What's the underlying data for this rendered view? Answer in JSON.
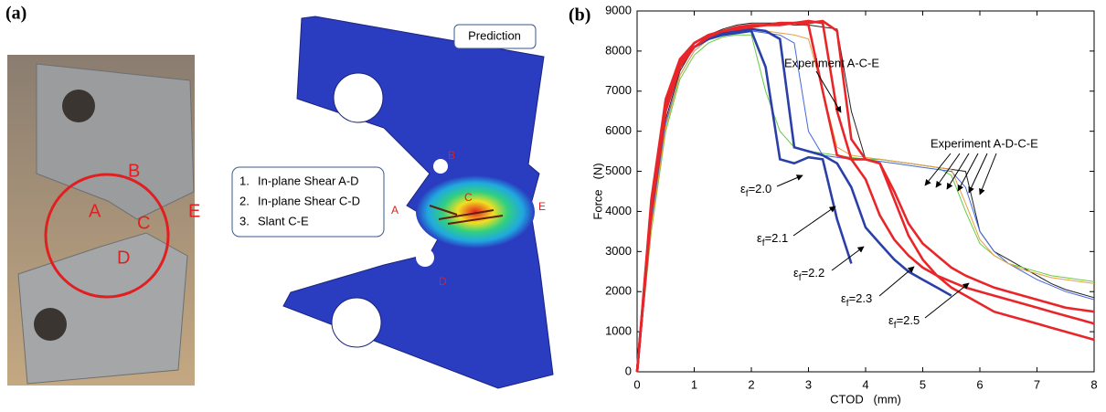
{
  "panel_a": {
    "label": "(a)",
    "photo_labels": [
      "A",
      "B",
      "C",
      "D",
      "E"
    ],
    "prediction_title": "Prediction",
    "modes": [
      {
        "num": "1.",
        "text": "In-plane Shear A-D"
      },
      {
        "num": "2.",
        "text": "In-plane Shear C-D"
      },
      {
        "num": "3.",
        "text": "Slant C-E"
      }
    ],
    "model_labels": [
      "A",
      "B",
      "C",
      "D",
      "E"
    ]
  },
  "panel_b": {
    "label": "(b)"
  },
  "chart_data": {
    "type": "line",
    "x_label": "CTOD   (mm)",
    "y_label": "Force   (N)",
    "x": [
      0,
      0.25,
      0.5,
      0.75,
      1,
      1.25,
      1.5,
      1.75,
      2,
      2.25,
      2.5,
      2.75,
      3,
      3.25,
      3.5,
      3.75,
      4,
      4.25,
      4.5,
      4.75,
      5,
      5.25,
      5.5,
      5.75,
      6,
      6.25,
      6.5,
      6.75,
      7,
      7.25,
      7.5,
      7.75,
      8
    ],
    "xlim": [
      0,
      8
    ],
    "xticks": [
      0,
      1,
      2,
      3,
      4,
      5,
      6,
      7,
      8
    ],
    "ylim": [
      0,
      9000
    ],
    "yticks": [
      0,
      1000,
      2000,
      3000,
      4000,
      5000,
      6000,
      7000,
      8000,
      9000
    ],
    "grid": false,
    "annotations": [
      "Experiment A-D-C-E"
    ],
    "series": [
      {
        "name": "Experiment A-C-E",
        "color": "#222222",
        "values": [
          0,
          3800,
          6300,
          7500,
          8100,
          8400,
          8550,
          8650,
          8700,
          8700,
          8700,
          8650,
          8650,
          8600,
          8550,
          6500,
          5300,
          5300,
          5250,
          5200,
          5150,
          5100,
          5050,
          5000,
          3500,
          3000,
          2800,
          2600,
          2400,
          2200,
          2050,
          1950,
          1850
        ]
      },
      {
        "color": "#66cc44",
        "values": [
          0,
          3500,
          6000,
          7300,
          7900,
          8200,
          8350,
          8400,
          8400,
          7000,
          6000,
          5600,
          5500,
          5450,
          5400,
          5350,
          5300,
          5300,
          5250,
          5200,
          5150,
          5100,
          4900,
          4000,
          3200,
          2900,
          2700,
          2600,
          2500,
          2400,
          2350,
          2300,
          2250
        ]
      },
      {
        "color": "#4466dd",
        "values": [
          0,
          3700,
          6200,
          7400,
          8000,
          8300,
          8450,
          8500,
          8500,
          8450,
          8400,
          8200,
          6000,
          5400,
          5350,
          5300,
          5300,
          5250,
          5200,
          5150,
          5100,
          5050,
          5000,
          4600,
          3500,
          3000,
          2700,
          2500,
          2300,
          2150,
          2000,
          1900,
          1800
        ]
      },
      {
        "color": "#e8a040",
        "values": [
          0,
          3600,
          6100,
          7400,
          8000,
          8300,
          8450,
          8550,
          8550,
          8500,
          8450,
          8400,
          8300,
          7000,
          5600,
          5400,
          5350,
          5300,
          5250,
          5200,
          5150,
          5100,
          5050,
          4200,
          3300,
          2900,
          2700,
          2550,
          2450,
          2350,
          2300,
          2250,
          2200
        ]
      },
      {
        "name": "εf=2.0",
        "color": "#2a3fa8",
        "values": [
          0,
          4200,
          6700,
          7700,
          8100,
          8300,
          8400,
          8450,
          8500,
          7600,
          5300,
          5200,
          5350,
          5300,
          3800,
          2700,
          null,
          null,
          null,
          null,
          null,
          null,
          null,
          null,
          null,
          null,
          null,
          null,
          null,
          null,
          null,
          null,
          null
        ]
      },
      {
        "name": "εf=2.1",
        "color": "#2a3fa8",
        "values": [
          0,
          4000,
          6600,
          7600,
          8100,
          8300,
          8450,
          8500,
          8550,
          8500,
          8300,
          5600,
          5500,
          5400,
          5200,
          4600,
          3600,
          3200,
          2800,
          2500,
          2300,
          2100,
          1900,
          null,
          null,
          null,
          null,
          null,
          null,
          null,
          null,
          null,
          null
        ]
      },
      {
        "name": "εf=2.2",
        "color": "#e8262a",
        "values": [
          0,
          4300,
          6800,
          7800,
          8200,
          8400,
          8500,
          8600,
          8650,
          8650,
          8700,
          8700,
          8650,
          7000,
          5400,
          5300,
          4800,
          3900,
          3300,
          2900,
          2600,
          2400,
          2250,
          2100,
          2000,
          1900,
          1800,
          1700,
          1600,
          1500,
          1400,
          1300,
          1200
        ]
      },
      {
        "name": "εf=2.3",
        "color": "#e8262a",
        "values": [
          0,
          4100,
          6600,
          7700,
          8200,
          8400,
          8500,
          8550,
          8600,
          8650,
          8650,
          8700,
          8750,
          8700,
          6500,
          5300,
          5300,
          5200,
          4500,
          3700,
          3200,
          2900,
          2600,
          2400,
          2250,
          2100,
          2000,
          1900,
          1800,
          1700,
          1600,
          1550,
          1500
        ]
      },
      {
        "name": "εf=2.5",
        "color": "#e8262a",
        "values": [
          0,
          4000,
          6500,
          7600,
          8100,
          8350,
          8500,
          8550,
          8600,
          8650,
          8700,
          8700,
          8700,
          8750,
          8500,
          5800,
          5300,
          5200,
          4300,
          3400,
          2800,
          2400,
          2100,
          1900,
          1700,
          1500,
          1400,
          1300,
          1200,
          1100,
          1000,
          900,
          800
        ]
      }
    ]
  }
}
